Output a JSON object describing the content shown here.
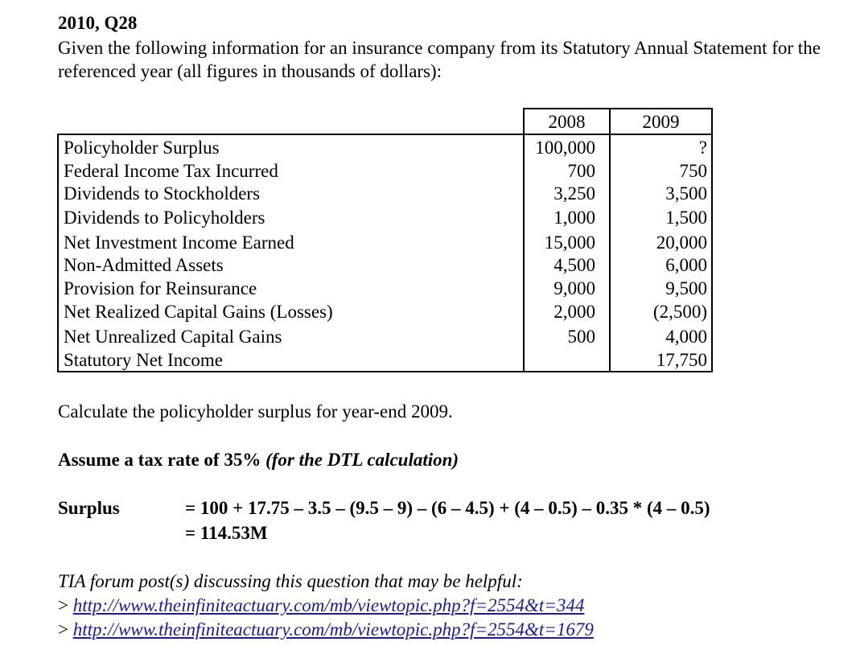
{
  "question_title": "2010, Q28",
  "intro_text": "Given the following information for an insurance company from its Statutory Annual Statement for the referenced year (all figures in thousands of dollars):",
  "table": {
    "col_2008": "2008",
    "col_2009": "2009",
    "rows": [
      {
        "label": "Policyholder Surplus",
        "v2008": "100,000",
        "v2009": "?"
      },
      {
        "label": "Federal Income Tax Incurred",
        "v2008": "700",
        "v2009": "750"
      },
      {
        "label": "Dividends to Stockholders",
        "v2008": "3,250",
        "v2009": "3,500"
      },
      {
        "label": "Dividends to Policyholders",
        "v2008": "1,000",
        "v2009": "1,500"
      },
      {
        "label": "Net Investment Income Earned",
        "v2008": "15,000",
        "v2009": "20,000"
      },
      {
        "label": "Non-Admitted Assets",
        "v2008": "4,500",
        "v2009": "6,000"
      },
      {
        "label": "Provision for Reinsurance",
        "v2008": "9,000",
        "v2009": "9,500"
      },
      {
        "label": "Net Realized Capital Gains (Losses)",
        "v2008": "2,000",
        "v2009": "(2,500)"
      },
      {
        "label": "Net Unrealized Capital Gains",
        "v2008": "500",
        "v2009": "4,000"
      },
      {
        "label": "Statutory Net Income",
        "v2008": "",
        "v2009": "17,750"
      }
    ]
  },
  "calc_prompt": "Calculate the policyholder surplus for year-end 2009.",
  "assume_bold": "Assume a tax rate of 35%",
  "assume_italic": "(for the DTL calculation)",
  "surplus_label": "Surplus",
  "formula_line1": "= 100 + 17.75 – 3.5 – (9.5 – 9) – (6 – 4.5) + (4 – 0.5) – 0.35 * (4 – 0.5)",
  "formula_line2": "= 114.53M",
  "forum_text": "TIA forum post(s) discussing this question that may be helpful:",
  "links": [
    {
      "prefix": ">",
      "text": "http://www.theinfiniteactuary.com/mb/viewtopic.php?f=2554&t=344"
    },
    {
      "prefix": ">",
      "text": "http://www.theinfiniteactuary.com/mb/viewtopic.php?f=2554&t=1679"
    }
  ]
}
